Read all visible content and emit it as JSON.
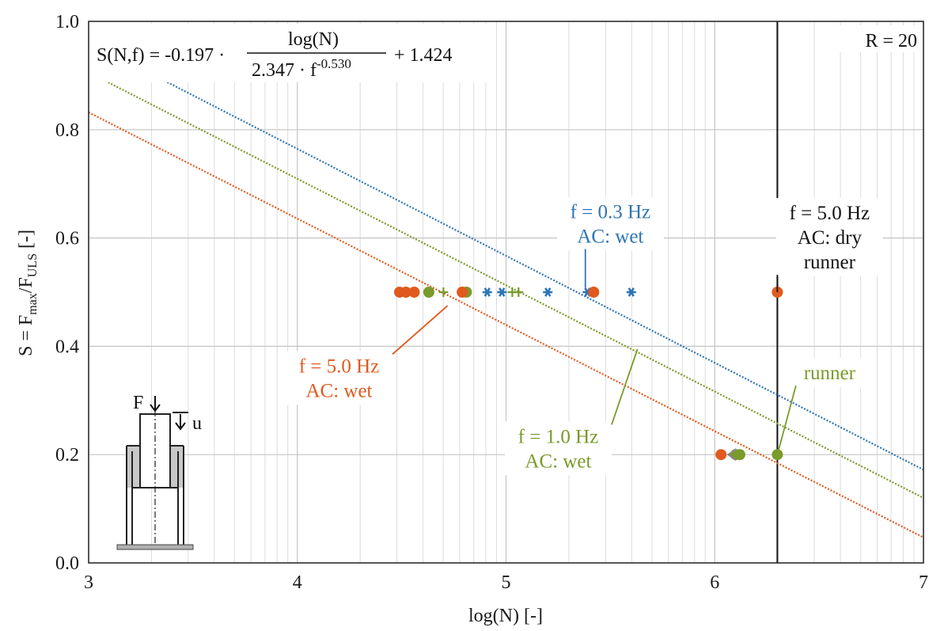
{
  "chart_data": {
    "type": "scatter",
    "xlabel": "log(N) [-]",
    "ylabel_parts": {
      "main": "S = F",
      "sub1": "max",
      "slash": "/F",
      "sub2": "ULS",
      "unit": " [-]"
    },
    "xlim": [
      3,
      7
    ],
    "ylim": [
      0.0,
      1.0
    ],
    "x_ticks": [
      "3",
      "4",
      "5",
      "6",
      "7"
    ],
    "y_ticks": [
      "0.0",
      "0.2",
      "0.4",
      "0.6",
      "0.8",
      "1.0"
    ],
    "grid": true,
    "equation": {
      "lhs": "S(N,f) = -0.197 ·",
      "numerator": "log(N)",
      "denominator": "2.347 · f",
      "exponent": "-0.530",
      "rhs": "+ 1.424"
    },
    "r_label": "R = 20",
    "runout_line_x": 6.3,
    "series": [
      {
        "name": "f = 0.3 Hz",
        "condition": "AC: wet",
        "color": "#2e75b6",
        "line_start": [
          3.35,
          0.893
        ],
        "line_end": [
          7.0,
          0.172
        ],
        "points": [
          {
            "x": 4.91,
            "y": 0.5,
            "marker": "asterisk"
          },
          {
            "x": 4.98,
            "y": 0.5,
            "marker": "asterisk"
          },
          {
            "x": 5.2,
            "y": 0.5,
            "marker": "asterisk"
          },
          {
            "x": 5.39,
            "y": 0.5,
            "marker": "asterisk"
          },
          {
            "x": 5.6,
            "y": 0.5,
            "marker": "asterisk"
          }
        ]
      },
      {
        "name": "f = 1.0 Hz",
        "condition": "AC: wet",
        "color": "#7a9a2a",
        "line_start": [
          3.08,
          0.89
        ],
        "line_end": [
          7.0,
          0.12
        ],
        "points": [
          {
            "x": 4.63,
            "y": 0.5,
            "marker": "circle"
          },
          {
            "x": 4.7,
            "y": 0.5,
            "marker": "plus"
          },
          {
            "x": 4.81,
            "y": 0.5,
            "marker": "circle"
          },
          {
            "x": 5.03,
            "y": 0.5,
            "marker": "plus"
          },
          {
            "x": 5.06,
            "y": 0.5,
            "marker": "plus"
          },
          {
            "x": 6.1,
            "y": 0.2,
            "marker": "circle"
          },
          {
            "x": 6.12,
            "y": 0.2,
            "marker": "circle"
          },
          {
            "x": 6.3,
            "y": 0.2,
            "marker": "circle"
          }
        ]
      },
      {
        "name": "f = 5.0 Hz",
        "condition": "AC: wet",
        "color": "#e05a1e",
        "line_start": [
          3.0,
          0.832
        ],
        "line_end": [
          7.0,
          0.047
        ],
        "points": [
          {
            "x": 4.49,
            "y": 0.5,
            "marker": "circle"
          },
          {
            "x": 4.52,
            "y": 0.5,
            "marker": "circle"
          },
          {
            "x": 4.56,
            "y": 0.5,
            "marker": "circle"
          },
          {
            "x": 4.79,
            "y": 0.5,
            "marker": "circle"
          },
          {
            "x": 5.42,
            "y": 0.5,
            "marker": "circle"
          },
          {
            "x": 6.03,
            "y": 0.2,
            "marker": "circle"
          },
          {
            "x": 6.08,
            "y": 0.2,
            "marker": "runout"
          },
          {
            "x": 6.3,
            "y": 0.5,
            "marker": "circle"
          }
        ]
      }
    ],
    "annotations": [
      {
        "lines": [
          "f = 0.3 Hz",
          "AC: wet"
        ],
        "color": "#2e75b6",
        "text_at": [
          5.5,
          0.625
        ],
        "anchor": [
          5.38,
          0.508
        ]
      },
      {
        "lines": [
          "f = 5.0 Hz",
          "AC: wet"
        ],
        "color": "#e05a1e",
        "text_at": [
          4.2,
          0.34
        ],
        "anchor": [
          4.72,
          0.475
        ]
      },
      {
        "lines": [
          "f = 1.0 Hz",
          "AC: wet"
        ],
        "color": "#7a9a2a",
        "text_at": [
          5.25,
          0.21
        ],
        "anchor": [
          5.63,
          0.395
        ]
      },
      {
        "lines": [
          "f = 5.0 Hz",
          "AC: dry",
          "runner"
        ],
        "color": "#111111",
        "text_at": [
          6.55,
          0.6
        ],
        "anchor": [
          6.3,
          0.5
        ]
      },
      {
        "lines": [
          "runner"
        ],
        "color": "#7a9a2a",
        "text_at": [
          6.55,
          0.35
        ],
        "anchor": [
          6.3,
          0.2
        ]
      }
    ],
    "inset": {
      "force_label": "F",
      "disp_label": "u"
    }
  }
}
